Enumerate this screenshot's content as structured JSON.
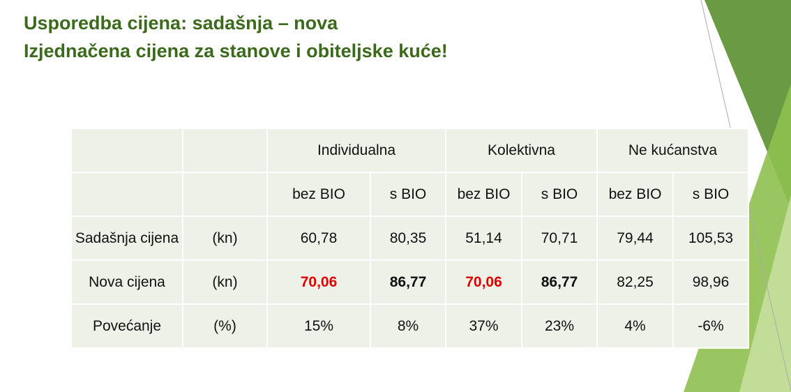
{
  "header": {
    "lines": [
      "Usporedba cijena: sadašnja – nova",
      "Izjednačena cijena za stanove i obiteljske kuće!"
    ]
  },
  "table": {
    "groups": [
      "Individualna",
      "Kolektivna",
      "Ne kućanstva"
    ],
    "subheaders": [
      "bez BIO",
      "s BIO",
      "bez BIO",
      "s BIO",
      "bez BIO",
      "s BIO"
    ],
    "rows": [
      {
        "label": "Sadašnja cijena",
        "unit": "(kn)",
        "values": [
          "60,78",
          "80,35",
          "51,14",
          "70,71",
          "79,44",
          "105,53"
        ]
      },
      {
        "label": "Nova cijena",
        "unit": "(kn)",
        "values": [
          "70,06",
          "86,77",
          "70,06",
          "86,77",
          "82,25",
          "98,96"
        ]
      },
      {
        "label": "Povećanje",
        "unit": "(%)",
        "values": [
          "15%",
          "8%",
          "37%",
          "23%",
          "4%",
          "-6%"
        ]
      }
    ]
  }
}
